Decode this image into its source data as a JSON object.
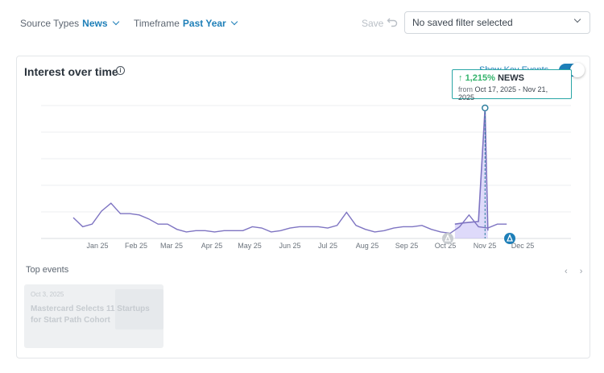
{
  "filters": {
    "source_types": {
      "label": "Source Types",
      "value": "News"
    },
    "timeframe": {
      "label": "Timeframe",
      "value": "Past Year"
    }
  },
  "save_label": "Save",
  "saved_filter": {
    "value": "No saved filter selected"
  },
  "card": {
    "title": "Interest over time",
    "toggle_label": "Show Key Events",
    "toggle_on": true
  },
  "tooltip": {
    "change": "1,215%",
    "source": "NEWS",
    "from_label": "from",
    "range": "Oct 17, 2025 - Nov 21, 2025"
  },
  "chart_data": {
    "type": "line",
    "categories": [
      "Jan 25",
      "Feb 25",
      "Mar 25",
      "Apr 25",
      "May 25",
      "Jun 25",
      "Jul 25",
      "Aug 25",
      "Sep 25",
      "Oct 25",
      "Nov 25",
      "Dec 25"
    ],
    "x_range": [
      0,
      48
    ],
    "ylim": [
      0,
      100
    ],
    "series": [
      {
        "color": "#7e74c2",
        "x": [
          0,
          1,
          2,
          3,
          4,
          5,
          6,
          7,
          8,
          9,
          10,
          11,
          12,
          13,
          14,
          15,
          16,
          17,
          18,
          19,
          20,
          21,
          22,
          23,
          24,
          25,
          26,
          27,
          28,
          29,
          30,
          31,
          32,
          33,
          34,
          35,
          36,
          37,
          38,
          39,
          40,
          41,
          42,
          43,
          44,
          45,
          46
        ],
        "values": [
          16,
          9,
          11,
          21,
          27,
          19,
          19,
          18,
          15,
          11,
          11,
          7,
          5,
          6,
          6,
          5,
          6,
          6,
          6,
          9,
          8,
          5,
          6,
          8,
          9,
          9,
          9,
          8,
          10,
          20,
          10,
          7,
          5,
          6,
          8,
          9,
          9,
          10,
          7,
          5,
          4,
          9,
          18,
          9,
          8,
          11,
          11
        ]
      }
    ],
    "highlight_values": [
      11,
      12,
      13,
      100,
      6
    ],
    "grid": true,
    "event_markers": [
      "Oct 25",
      "Dec 25"
    ]
  },
  "top_events": {
    "heading": "Top events",
    "pager": "‹ ›",
    "items": [
      {
        "date": "Oct 3, 2025",
        "title": "Mastercard Selects 11 Startups for Start Path Cohort"
      }
    ]
  },
  "icons": {
    "info": "info-icon",
    "undo": "undo-icon",
    "arrow_up": "arrow-up-icon",
    "event_marker": "event-marker-icon"
  }
}
